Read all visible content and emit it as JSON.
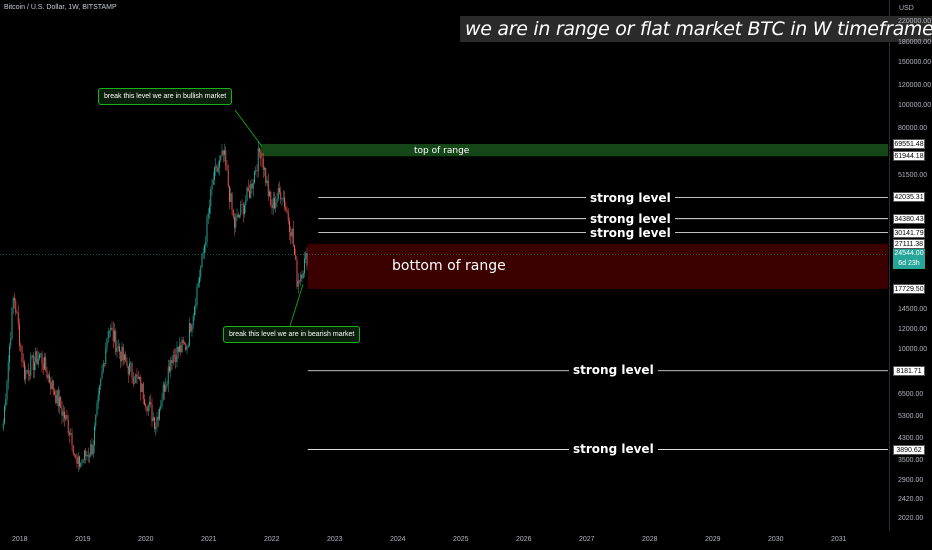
{
  "header": {
    "symbol": "Bitcoin / U.S. Dollar, 1W, BITSTAMP",
    "idea_title": "we are in range or flat market BTC in  W  timeframe",
    "currency": "USD"
  },
  "annotations": {
    "bullish_callout": "break this level we are in bullish market",
    "bearish_callout": "break this level we are in bearish market",
    "top_of_range": "top of range",
    "bottom_of_range": "bottom of range",
    "strong_level": "strong level"
  },
  "colors": {
    "background": "#000000",
    "up_candle": "#26a69a",
    "down_candle": "#ef5350",
    "top_zone": "#1b5e20",
    "bottom_zone": "#4a0000",
    "callout_border": "#19b219"
  },
  "chart_data": {
    "type": "candlestick",
    "title": "we are in range or flat market BTC in  W  timeframe",
    "scale": "log",
    "ylim": [
      2020,
      220000
    ],
    "xlim": [
      "2017-10",
      "2031-09"
    ],
    "y_tick_labels": [
      "220000.00",
      "180000.00",
      "150000.00",
      "120000.00",
      "100000.00",
      "80000.00",
      "51500.00",
      "14500.00",
      "12000.00",
      "10000.00",
      "6500.00",
      "5300.00",
      "4300.00",
      "3500.00",
      "2900.00",
      "2420.00",
      "2020.00"
    ],
    "x_tick_labels": [
      "2018",
      "2019",
      "2020",
      "2021",
      "2022",
      "2023",
      "2024",
      "2025",
      "2026",
      "2027",
      "2028",
      "2029",
      "2030",
      "2031"
    ],
    "price_tags": [
      {
        "label": "69551.48",
        "value": 69551.48
      },
      {
        "label": "61944.18",
        "value": 61944.18
      },
      {
        "label": "42035.31",
        "value": 42035.31
      },
      {
        "label": "34380.43",
        "value": 34380.43
      },
      {
        "label": "30141.79",
        "value": 30141.79
      },
      {
        "label": "27111.38",
        "value": 27111.38
      },
      {
        "label": "17729.50",
        "value": 17729.5
      },
      {
        "label": "8181.71",
        "value": 8181.71
      },
      {
        "label": "3890.62",
        "value": 3890.62
      }
    ],
    "current_price": {
      "label": "24544.00",
      "sub": "6d 23h",
      "value": 24544
    },
    "zones": [
      {
        "name": "top of range",
        "low": 61944.18,
        "high": 69551.48
      },
      {
        "name": "bottom of range",
        "low": 17729.5,
        "high": 27111.38
      }
    ],
    "strong_levels": [
      42035.31,
      34380.43,
      30141.79,
      8181.71,
      3890.62
    ],
    "price_path": [
      [
        "2017-10",
        5000
      ],
      [
        "2017-12",
        17000
      ],
      [
        "2018-02",
        8000
      ],
      [
        "2018-05",
        9500
      ],
      [
        "2018-08",
        6500
      ],
      [
        "2018-11",
        4500
      ],
      [
        "2018-12",
        3300
      ],
      [
        "2019-03",
        4000
      ],
      [
        "2019-06",
        12500
      ],
      [
        "2019-09",
        9000
      ],
      [
        "2019-12",
        7200
      ],
      [
        "2020-03",
        5000
      ],
      [
        "2020-06",
        9400
      ],
      [
        "2020-09",
        10500
      ],
      [
        "2020-12",
        24000
      ],
      [
        "2021-02",
        50000
      ],
      [
        "2021-04",
        63000
      ],
      [
        "2021-06",
        32000
      ],
      [
        "2021-09",
        45000
      ],
      [
        "2021-11",
        67000
      ],
      [
        "2022-01",
        38000
      ],
      [
        "2022-03",
        45000
      ],
      [
        "2022-05",
        30000
      ],
      [
        "2022-06",
        19000
      ],
      [
        "2022-08",
        24500
      ]
    ]
  }
}
